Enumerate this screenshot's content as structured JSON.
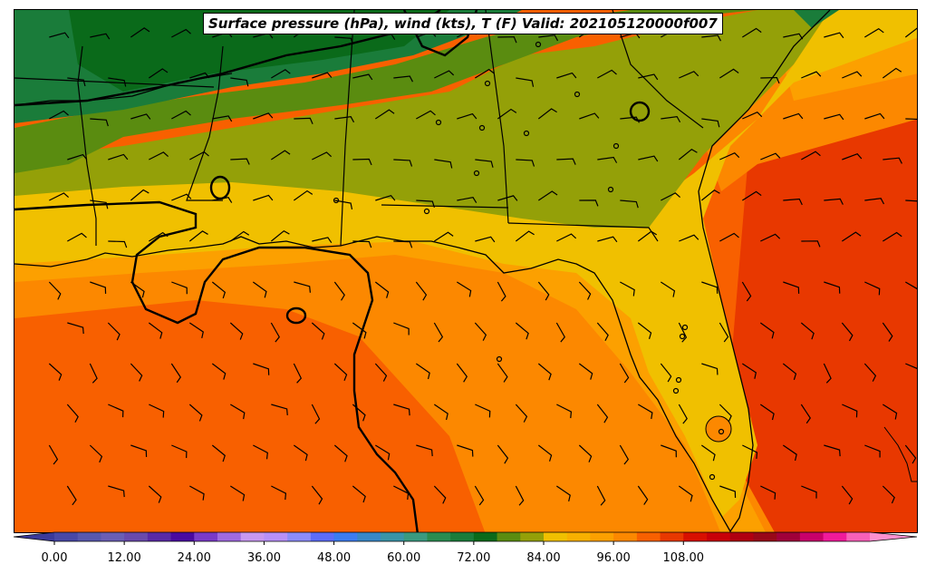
{
  "title": "Surface pressure (hPa), wind (kts), T (F) Valid: 202105120000f007",
  "colorbar": {
    "min": -4,
    "max": 124,
    "step": 4,
    "extend": "both",
    "tick_values": [
      0,
      12,
      24,
      36,
      48,
      60,
      72,
      84,
      96,
      108
    ],
    "tick_labels": [
      "0.00",
      "12.00",
      "24.00",
      "36.00",
      "48.00",
      "60.00",
      "72.00",
      "84.00",
      "96.00",
      "108.00"
    ],
    "colors": [
      "#3a3a9a",
      "#4848a6",
      "#5858ae",
      "#6a5eb4",
      "#6a4aac",
      "#5a2aa6",
      "#4a0aa0",
      "#7a3ac8",
      "#a06ae0",
      "#c898f0",
      "#b890f8",
      "#8c8cfa",
      "#5c6cf8",
      "#3c7cf0",
      "#3888c8",
      "#3a94a8",
      "#3a9a80",
      "#2a8c50",
      "#1a7c3a",
      "#0a6a1a",
      "#5a8c10",
      "#94a008",
      "#f0c000",
      "#f8b000",
      "#fca000",
      "#fc8800",
      "#f86000",
      "#e83800",
      "#d81000",
      "#c80008",
      "#b00010",
      "#980818",
      "#a0003a",
      "#c8006a",
      "#f01a9a",
      "#f860b8",
      "#fc90d0"
    ]
  },
  "map_colors": {
    "dark_green": "#0a6a1a",
    "green": "#1a7c3a",
    "olive_green": "#5a8c10",
    "olive": "#94a008",
    "yellow": "#f0c000",
    "light_orange": "#fca000",
    "orange": "#fc8800",
    "orange_red": "#f86000",
    "red_orange": "#e83800"
  }
}
